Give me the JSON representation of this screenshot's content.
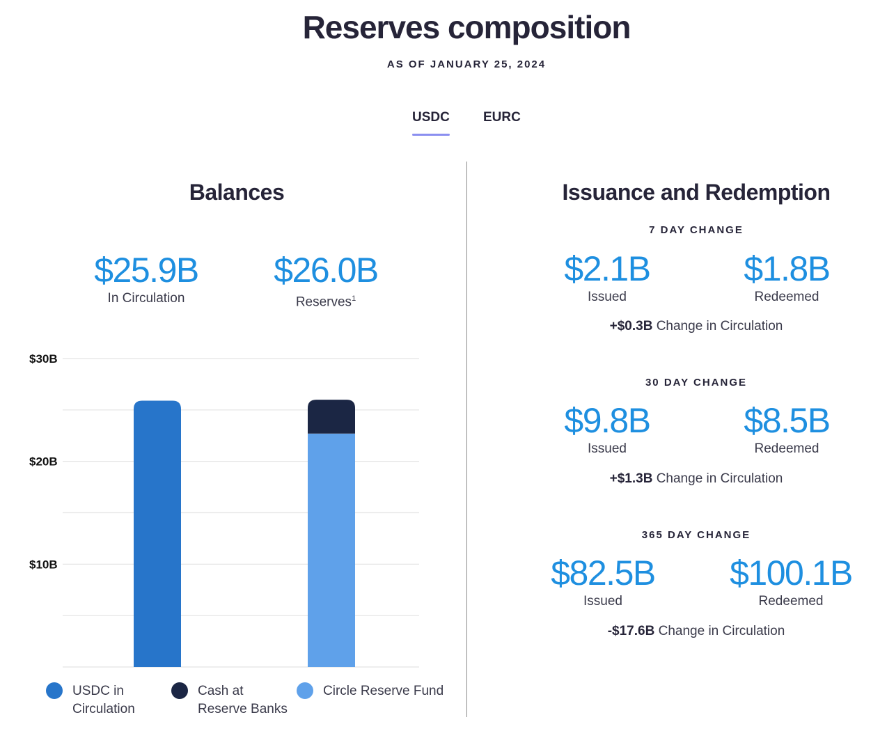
{
  "header": {
    "title": "Reserves composition",
    "subtitle": "AS OF JANUARY 25, 2024"
  },
  "tabs": [
    {
      "label": "USDC",
      "active": true
    },
    {
      "label": "EURC",
      "active": false
    }
  ],
  "balances": {
    "title": "Balances",
    "circulation": {
      "value": "$25.9B",
      "label": "In Circulation"
    },
    "reserves": {
      "value": "$26.0B",
      "label": "Reserves",
      "footnote": "1"
    }
  },
  "chart_data": {
    "type": "bar",
    "stacked": true,
    "categories": [
      "",
      ""
    ],
    "series": [
      {
        "name": "USDC in Circulation",
        "color": "#2775ca",
        "values": [
          25.9,
          0
        ]
      },
      {
        "name": "Circle Reserve Fund",
        "color": "#5fa1ea",
        "values": [
          0,
          22.7
        ]
      },
      {
        "name": "Cash at Reserve Banks",
        "color": "#1b2644",
        "values": [
          0,
          3.3
        ]
      }
    ],
    "yticks": [
      "$30B",
      "$20B",
      "$10B"
    ],
    "ytick_values": [
      30,
      20,
      10
    ],
    "ylim": [
      0,
      30
    ],
    "grid": true
  },
  "legend": [
    {
      "line1": "USDC in",
      "line2": "Circulation",
      "color": "#2775ca"
    },
    {
      "line1": "Cash at",
      "line2": "Reserve Banks",
      "color": "#1b2644"
    },
    {
      "line1": "Circle Reserve Fund",
      "line2": "",
      "color": "#5fa1ea"
    }
  ],
  "issuance": {
    "title": "Issuance and Redemption",
    "periods": [
      {
        "heading": "7 DAY CHANGE",
        "issued": "$2.1B",
        "issued_label": "Issued",
        "redeemed": "$1.8B",
        "redeemed_label": "Redeemed",
        "change_amount": "+$0.3B",
        "change_text": " Change in Circulation"
      },
      {
        "heading": "30 DAY CHANGE",
        "issued": "$9.8B",
        "issued_label": "Issued",
        "redeemed": "$8.5B",
        "redeemed_label": "Redeemed",
        "change_amount": "+$1.3B",
        "change_text": " Change in Circulation"
      },
      {
        "heading": "365 DAY CHANGE",
        "issued": "$82.5B",
        "issued_label": "Issued",
        "redeemed": "$100.1B",
        "redeemed_label": "Redeemed",
        "change_amount": "-$17.6B",
        "change_text": " Change in Circulation"
      }
    ]
  }
}
